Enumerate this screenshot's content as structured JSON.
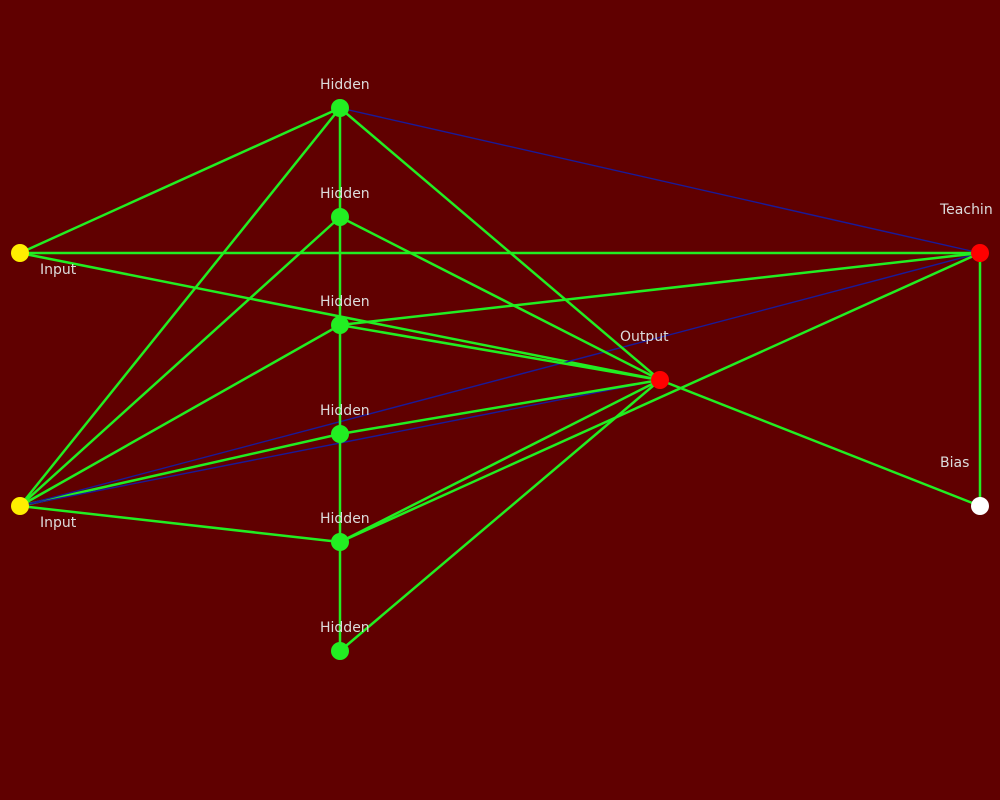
{
  "colors": {
    "background": "#600000",
    "edge_primary": "#22ee22",
    "edge_secondary": "#1a1a9a",
    "label": "#dcdcdc"
  },
  "nodes": [
    {
      "id": "in1",
      "role": "input",
      "label": "Input",
      "color": "#ffee00"
    },
    {
      "id": "in2",
      "role": "input",
      "label": "Input",
      "color": "#ffee00"
    },
    {
      "id": "h1",
      "role": "hidden",
      "label": "Hidden",
      "color": "#22ee22"
    },
    {
      "id": "h2",
      "role": "hidden",
      "label": "Hidden",
      "color": "#22ee22"
    },
    {
      "id": "h3",
      "role": "hidden",
      "label": "Hidden",
      "color": "#22ee22"
    },
    {
      "id": "h4",
      "role": "hidden",
      "label": "Hidden",
      "color": "#22ee22"
    },
    {
      "id": "h5",
      "role": "hidden",
      "label": "Hidden",
      "color": "#22ee22"
    },
    {
      "id": "h6",
      "role": "hidden",
      "label": "Hidden",
      "color": "#22ee22"
    },
    {
      "id": "out",
      "role": "output",
      "label": "Output",
      "color": "#ff0000"
    },
    {
      "id": "teach",
      "role": "teaching",
      "label": "Teachin",
      "color": "#ff0000"
    },
    {
      "id": "bias",
      "role": "bias",
      "label": "Bias",
      "color": "#ffffff"
    }
  ],
  "edges": [
    {
      "from": "in1",
      "to": "h1",
      "kind": "primary"
    },
    {
      "from": "in1",
      "to": "teach",
      "kind": "primary"
    },
    {
      "from": "in1",
      "to": "out",
      "kind": "primary"
    },
    {
      "from": "in2",
      "to": "h1",
      "kind": "primary"
    },
    {
      "from": "in2",
      "to": "h2",
      "kind": "primary"
    },
    {
      "from": "in2",
      "to": "h3",
      "kind": "primary"
    },
    {
      "from": "in2",
      "to": "h4",
      "kind": "primary"
    },
    {
      "from": "in2",
      "to": "h5",
      "kind": "primary"
    },
    {
      "from": "in2",
      "to": "teach",
      "kind": "secondary"
    },
    {
      "from": "in2",
      "to": "out",
      "kind": "secondary"
    },
    {
      "from": "h1",
      "to": "h2",
      "kind": "primary"
    },
    {
      "from": "h2",
      "to": "h3",
      "kind": "primary"
    },
    {
      "from": "h3",
      "to": "h4",
      "kind": "primary"
    },
    {
      "from": "h4",
      "to": "h5",
      "kind": "primary"
    },
    {
      "from": "h5",
      "to": "h6",
      "kind": "primary"
    },
    {
      "from": "h1",
      "to": "out",
      "kind": "primary"
    },
    {
      "from": "h1",
      "to": "teach",
      "kind": "secondary"
    },
    {
      "from": "h2",
      "to": "out",
      "kind": "primary"
    },
    {
      "from": "h3",
      "to": "out",
      "kind": "primary"
    },
    {
      "from": "h3",
      "to": "teach",
      "kind": "primary"
    },
    {
      "from": "h4",
      "to": "out",
      "kind": "primary"
    },
    {
      "from": "h5",
      "to": "out",
      "kind": "primary"
    },
    {
      "from": "h5",
      "to": "teach",
      "kind": "primary"
    },
    {
      "from": "h6",
      "to": "out",
      "kind": "primary"
    },
    {
      "from": "out",
      "to": "bias",
      "kind": "primary"
    },
    {
      "from": "teach",
      "to": "bias",
      "kind": "primary"
    }
  ]
}
